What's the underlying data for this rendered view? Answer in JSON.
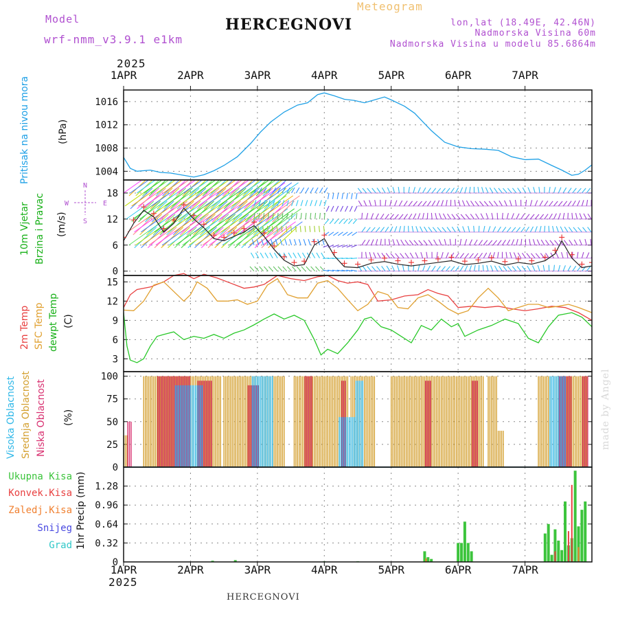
{
  "header": {
    "model_label": "Model",
    "model_value": "wrf-nmm_v3.9.1 e1km",
    "title": "HERCEGNOVI",
    "meteogram": "Meteogram",
    "lonlat": "lon,lat (18.49E, 42.46N)",
    "elevation": "Nadmorska Visina 60m",
    "model_elevation": "Nadmorska Visina u modelu 85.6864m",
    "year_top": "2025",
    "footer": "HERCEGNOVI",
    "year_bottom": "2025",
    "watermark": "made by Angel"
  },
  "colors": {
    "pressure": "#1ea0e6",
    "t2m": "#e84040",
    "sfc": "#e0a030",
    "dewpt": "#28c828",
    "high_cloud": "#30b8e8",
    "mid_cloud": "#d4a030",
    "low_cloud": "#d83070",
    "total_precip": "#3cc43c",
    "conv_precip": "#e84040",
    "frz_precip": "#f08030",
    "snow": "#4848e0",
    "grad": "#30c8c8",
    "wind_label": "#18b018",
    "wind_purple": "#b050d0"
  },
  "chart_data": [
    {
      "type": "line",
      "panel": "pressure",
      "ylabel": "Pritisak na nivou mora",
      "unit": "(hPa)",
      "x_ticks": [
        "1APR",
        "2APR",
        "3APR",
        "4APR",
        "5APR",
        "6APR",
        "7APR"
      ],
      "ylim": [
        1002.5,
        1018
      ],
      "yticks": [
        1004,
        1008,
        1012,
        1016
      ],
      "grid": true,
      "series": [
        {
          "color_key": "pressure",
          "x": [
            0,
            0.1,
            0.2,
            0.4,
            0.55,
            0.7,
            0.9,
            1.05,
            1.2,
            1.35,
            1.5,
            1.7,
            1.9,
            2.05,
            2.2,
            2.4,
            2.6,
            2.75,
            2.9,
            3.0,
            3.15,
            3.3,
            3.45,
            3.6,
            3.75,
            3.9,
            4.0,
            4.2,
            4.35,
            4.5,
            4.6,
            4.8,
            5.0,
            5.2,
            5.4,
            5.6,
            5.8,
            6.0,
            6.2,
            6.4,
            6.55,
            6.7,
            6.8,
            6.9,
            7.0
          ],
          "y": [
            1006.4,
            1004.5,
            1004.0,
            1004.2,
            1003.8,
            1003.7,
            1003.3,
            1003.0,
            1003.4,
            1004.1,
            1005.0,
            1006.5,
            1008.8,
            1010.8,
            1012.5,
            1014.2,
            1015.4,
            1015.8,
            1017.2,
            1017.5,
            1017.0,
            1016.4,
            1016.2,
            1015.8,
            1016.3,
            1016.8,
            1016.3,
            1015.2,
            1014.0,
            1012.2,
            1011.0,
            1009.0,
            1008.2,
            1007.9,
            1007.8,
            1007.6,
            1006.5,
            1006.0,
            1006.1,
            1005.0,
            1004.2,
            1003.3,
            1003.5,
            1004.2,
            1005.1
          ]
        }
      ]
    },
    {
      "type": "line",
      "panel": "wind",
      "ylabel_1": "10m Vjetar",
      "ylabel_2": "Brzina i Pravac",
      "unit": "(m/s)",
      "compass": {
        "n": "N",
        "s": "S",
        "w": "W",
        "e": "E"
      },
      "ylim": [
        -1,
        21
      ],
      "yticks": [
        0,
        6,
        12,
        18
      ],
      "grid": true,
      "speed_x": [
        0,
        0.15,
        0.3,
        0.45,
        0.6,
        0.75,
        0.9,
        1.05,
        1.2,
        1.35,
        1.5,
        1.65,
        1.8,
        1.95,
        2.1,
        2.25,
        2.4,
        2.55,
        2.7,
        2.85,
        3.0,
        3.15,
        3.3,
        3.5,
        3.7,
        3.9,
        4.1,
        4.3,
        4.5,
        4.7,
        4.9,
        5.1,
        5.3,
        5.5,
        5.7,
        5.9,
        6.1,
        6.3,
        6.45,
        6.55,
        6.7,
        6.85,
        7.0
      ],
      "speed": [
        7.0,
        11.0,
        14.0,
        12.5,
        9.0,
        11.0,
        14.5,
        12.0,
        10.0,
        7.5,
        7.0,
        8.0,
        9.0,
        10.5,
        8.0,
        5.0,
        2.5,
        1.2,
        1.5,
        6.0,
        7.5,
        3.5,
        1.0,
        0.8,
        1.8,
        2.2,
        1.6,
        1.2,
        1.6,
        2.0,
        2.4,
        1.5,
        1.8,
        2.3,
        1.4,
        2.0,
        1.6,
        2.4,
        4.0,
        7.0,
        3.0,
        0.8,
        1.2
      ],
      "levels": [
        18,
        15,
        12,
        9,
        6,
        3,
        0
      ]
    },
    {
      "type": "line",
      "panel": "temperature",
      "ylabel_1": "2m Temp",
      "ylabel_2": "SFC Temp",
      "ylabel_3": "dewpt Temp",
      "unit": "(C)",
      "ylim": [
        1,
        16
      ],
      "yticks": [
        3,
        6,
        9,
        12,
        15
      ],
      "grid": true,
      "series": [
        {
          "color_key": "t2m",
          "x": [
            0,
            0.1,
            0.2,
            0.4,
            0.6,
            0.75,
            0.9,
            1.05,
            1.2,
            1.4,
            1.6,
            1.8,
            1.95,
            2.1,
            2.3,
            2.5,
            2.7,
            2.9,
            3.05,
            3.2,
            3.35,
            3.5,
            3.65,
            3.8,
            4.0,
            4.2,
            4.4,
            4.55,
            4.7,
            4.85,
            5.0,
            5.2,
            5.4,
            5.6,
            5.8,
            6.0,
            6.2,
            6.4,
            6.6,
            6.8,
            7.0
          ],
          "y": [
            11.0,
            13.0,
            13.8,
            14.2,
            15.0,
            16.0,
            16.3,
            15.5,
            16.2,
            15.6,
            14.8,
            14.0,
            14.2,
            14.6,
            16.0,
            15.5,
            15.2,
            15.8,
            16.0,
            15.2,
            14.8,
            15.0,
            14.6,
            12.0,
            12.2,
            12.8,
            13.0,
            13.8,
            13.2,
            12.8,
            11.0,
            11.2,
            11.0,
            11.2,
            10.8,
            10.5,
            10.8,
            11.2,
            11.0,
            10.2,
            9.0
          ]
        },
        {
          "color_key": "sfc",
          "x": [
            0,
            0.15,
            0.3,
            0.45,
            0.6,
            0.75,
            0.9,
            1.0,
            1.1,
            1.25,
            1.4,
            1.55,
            1.7,
            1.85,
            2.0,
            2.15,
            2.3,
            2.45,
            2.6,
            2.75,
            2.9,
            3.05,
            3.2,
            3.35,
            3.5,
            3.65,
            3.8,
            3.95,
            4.1,
            4.25,
            4.4,
            4.55,
            4.7,
            4.85,
            5.0,
            5.15,
            5.3,
            5.45,
            5.6,
            5.75,
            5.9,
            6.05,
            6.2,
            6.35,
            6.5,
            6.65,
            6.8,
            7.0
          ],
          "y": [
            10.6,
            10.5,
            12.0,
            14.5,
            15.0,
            13.5,
            12.0,
            13.0,
            15.0,
            14.0,
            12.0,
            12.0,
            12.2,
            11.5,
            12.0,
            14.5,
            15.5,
            13.0,
            12.5,
            12.5,
            14.8,
            15.2,
            14.0,
            12.2,
            10.5,
            11.5,
            13.5,
            13.0,
            11.0,
            10.8,
            12.5,
            13.0,
            12.0,
            10.8,
            10.0,
            10.5,
            12.5,
            14.0,
            12.5,
            10.5,
            11.0,
            11.5,
            11.5,
            11.0,
            11.2,
            11.5,
            11.0,
            10.2
          ]
        },
        {
          "color_key": "dewpt",
          "x": [
            0,
            0.05,
            0.1,
            0.2,
            0.3,
            0.4,
            0.5,
            0.6,
            0.75,
            0.9,
            1.05,
            1.2,
            1.35,
            1.5,
            1.65,
            1.8,
            1.95,
            2.1,
            2.25,
            2.4,
            2.55,
            2.7,
            2.85,
            2.95,
            3.05,
            3.2,
            3.35,
            3.5,
            3.6,
            3.7,
            3.85,
            4.0,
            4.15,
            4.3,
            4.45,
            4.6,
            4.75,
            4.9,
            5.0,
            5.1,
            5.3,
            5.5,
            5.7,
            5.9,
            6.05,
            6.2,
            6.35,
            6.5,
            6.7,
            6.85,
            7.0
          ],
          "y": [
            10.2,
            5.0,
            2.8,
            2.4,
            3.0,
            5.0,
            6.5,
            6.8,
            7.2,
            6.0,
            6.5,
            6.2,
            6.8,
            6.2,
            7.0,
            7.5,
            8.3,
            9.2,
            10.0,
            9.2,
            9.8,
            9.0,
            6.0,
            3.6,
            4.5,
            3.8,
            5.5,
            7.5,
            9.2,
            9.5,
            8.0,
            7.5,
            6.5,
            5.5,
            8.2,
            7.5,
            9.2,
            8.0,
            8.5,
            6.5,
            7.5,
            8.2,
            9.2,
            8.5,
            6.2,
            5.5,
            8.0,
            9.8,
            10.2,
            9.5,
            8.0
          ]
        }
      ]
    },
    {
      "type": "bar",
      "panel": "cloud",
      "ylabel_1": "Visoka Oblacnost",
      "ylabel_2": "Srednja Oblacnost",
      "ylabel_3": "Niska Oblacnost",
      "unit": "(%)",
      "ylim": [
        0,
        105
      ],
      "yticks": [
        0,
        25,
        50,
        75,
        100
      ],
      "grid": true,
      "series": [
        {
          "name": "Srednja Oblacnost",
          "color_key": "mid_cloud",
          "ranges": [
            [
              0.0,
              0.05,
              35
            ],
            [
              0.3,
              1.45,
              100
            ],
            [
              1.5,
              2.4,
              100
            ],
            [
              2.55,
              3.35,
              100
            ],
            [
              3.4,
              3.75,
              100
            ],
            [
              3.55,
              3.62,
              8
            ],
            [
              4.0,
              5.1,
              100
            ],
            [
              5.1,
              5.4,
              100
            ],
            [
              5.45,
              5.6,
              100
            ],
            [
              5.6,
              5.7,
              40
            ],
            [
              6.2,
              6.4,
              100
            ],
            [
              6.45,
              6.95,
              100
            ]
          ]
        },
        {
          "name": "Niska Oblacnost",
          "color_key": "low_cloud",
          "ranges": [
            [
              0.05,
              0.1,
              50
            ],
            [
              0.5,
              1.0,
              100
            ],
            [
              1.1,
              1.3,
              95
            ],
            [
              1.85,
              2.0,
              90
            ],
            [
              2.7,
              2.8,
              100
            ],
            [
              3.25,
              3.3,
              95
            ],
            [
              4.5,
              4.6,
              95
            ],
            [
              5.2,
              5.3,
              95
            ],
            [
              6.5,
              6.7,
              100
            ],
            [
              6.85,
              6.95,
              100
            ]
          ]
        },
        {
          "name": "Visoka Oblacnost",
          "color_key": "high_cloud",
          "ranges": [
            [
              0.75,
              1.15,
              90
            ],
            [
              1.9,
              2.2,
              100
            ],
            [
              3.2,
              3.45,
              55
            ],
            [
              3.45,
              3.55,
              95
            ],
            [
              6.35,
              6.6,
              100
            ]
          ]
        }
      ]
    },
    {
      "type": "bar",
      "panel": "precip",
      "unit": "1hr Precip (mm)",
      "legend": [
        "Ukupna Kisa",
        "Konvek.Kisa",
        "Zaledj.Kisa",
        "Snijeg",
        "Grad"
      ],
      "ylim": [
        0,
        1.6
      ],
      "yticks": [
        0,
        0.32,
        0.64,
        0.96,
        1.28
      ],
      "grid": true,
      "total_x": [
        1.33,
        1.67,
        3.0,
        3.5,
        4.5,
        4.55,
        4.6,
        5.0,
        5.05,
        5.1,
        5.15,
        5.2,
        6.3,
        6.35,
        6.4,
        6.45,
        6.5,
        6.55,
        6.6,
        6.65,
        6.7,
        6.75,
        6.8,
        6.85,
        6.9
      ],
      "total_y": [
        0.02,
        0.03,
        0.01,
        0.01,
        0.18,
        0.08,
        0.05,
        0.32,
        0.32,
        0.68,
        0.32,
        0.18,
        0.48,
        0.64,
        0.12,
        0.55,
        0.36,
        0.2,
        1.02,
        0.28,
        0.4,
        1.54,
        0.6,
        0.88,
        1.02
      ],
      "conv_x": [
        6.45,
        6.65,
        6.7
      ],
      "conv_y": [
        0.18,
        0.52,
        1.3
      ],
      "frz_x": [
        4.52,
        6.8
      ],
      "frz_y": [
        0.06,
        0.25
      ]
    }
  ]
}
